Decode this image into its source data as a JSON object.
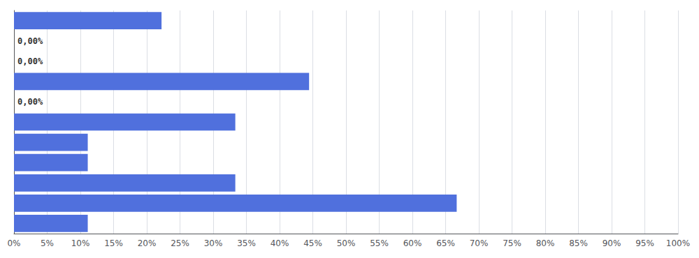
{
  "chart_data": {
    "type": "bar",
    "orientation": "horizontal",
    "categories": [
      null,
      null,
      null,
      null,
      null,
      null,
      null,
      null,
      null,
      null,
      null
    ],
    "values": [
      22.22,
      0.0,
      0.0,
      44.44,
      0.0,
      33.33,
      11.11,
      11.11,
      33.33,
      66.67,
      11.11
    ],
    "data_labels": true,
    "value_labels": [
      null,
      "0,00%",
      "0,00%",
      null,
      "0,00%",
      null,
      null,
      null,
      null,
      null,
      null
    ],
    "xlim": [
      0,
      100
    ],
    "xticks": [
      {
        "value": 0,
        "label": "0%"
      },
      {
        "value": 5,
        "label": "5%"
      },
      {
        "value": 10,
        "label": "10%"
      },
      {
        "value": 15,
        "label": "15%"
      },
      {
        "value": 20,
        "label": "20%"
      },
      {
        "value": 25,
        "label": "25%"
      },
      {
        "value": 30,
        "label": "30%"
      },
      {
        "value": 35,
        "label": "35%"
      },
      {
        "value": 40,
        "label": "40%"
      },
      {
        "value": 45,
        "label": "45%"
      },
      {
        "value": 50,
        "label": "50%"
      },
      {
        "value": 55,
        "label": "55%"
      },
      {
        "value": 60,
        "label": "60%"
      },
      {
        "value": 65,
        "label": "65%"
      },
      {
        "value": 70,
        "label": "70%"
      },
      {
        "value": 75,
        "label": "75%"
      },
      {
        "value": 80,
        "label": "80%"
      },
      {
        "value": 85,
        "label": "85%"
      },
      {
        "value": 90,
        "label": "90%"
      },
      {
        "value": 95,
        "label": "95%"
      },
      {
        "value": 100,
        "label": "100%"
      }
    ],
    "grid": true,
    "tick_labels": "x"
  }
}
